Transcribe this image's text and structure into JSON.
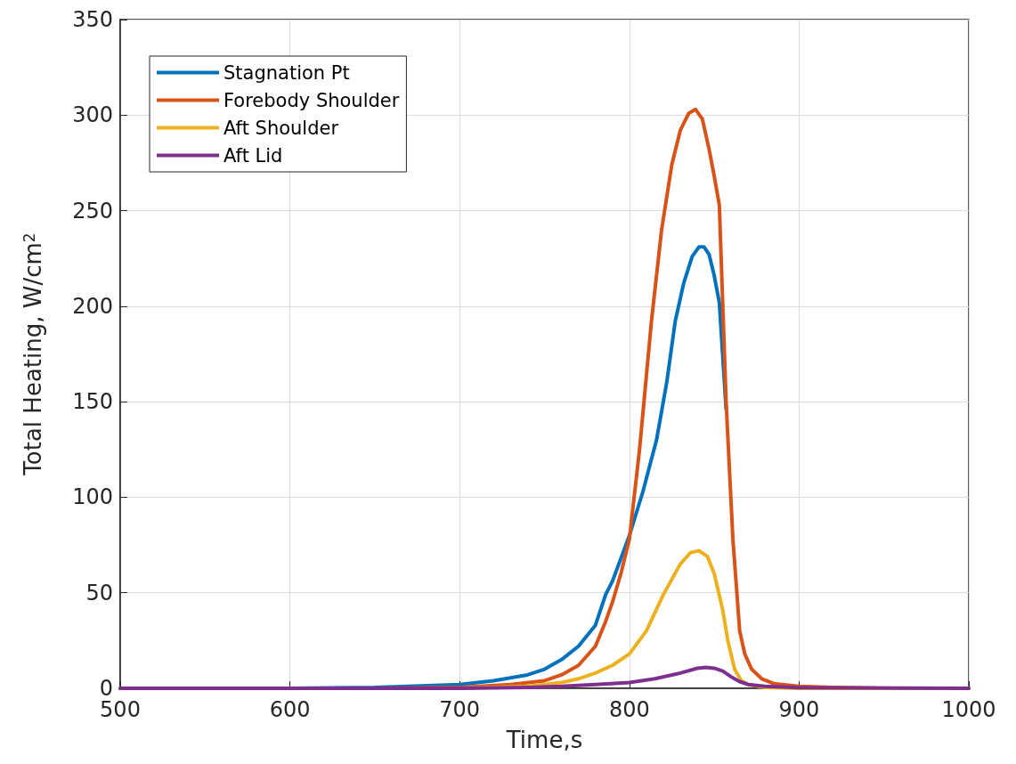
{
  "chart_data": {
    "type": "line",
    "xlabel": "Time,s",
    "ylabel": "Total Heating, W/cm$^{2}$",
    "xlim": [
      500,
      1000
    ],
    "xticks": [
      500,
      600,
      700,
      800,
      900,
      1000
    ],
    "ylim": [
      0,
      350
    ],
    "yticks": [
      0,
      50,
      100,
      150,
      200,
      250,
      300,
      350
    ],
    "grid": true,
    "legend": "top left",
    "line_style": "solid",
    "marker": "none",
    "series": [
      {
        "name": "Stagnation Pt",
        "color": "#0072bd",
        "x": [
          500,
          600,
          650,
          700,
          720,
          740,
          750,
          760,
          770,
          780,
          786,
          790,
          800,
          808,
          816,
          822,
          827,
          832,
          837,
          841,
          844,
          847,
          850,
          853,
          857
        ],
        "values": [
          0,
          0,
          0.5,
          2,
          4,
          7,
          10,
          15,
          22,
          33,
          49,
          56,
          80,
          103,
          130,
          160,
          192,
          212,
          226,
          231,
          231,
          227,
          216,
          202,
          146
        ]
      },
      {
        "name": "Forebody Shoulder",
        "color": "#d95319",
        "x": [
          500,
          650,
          700,
          730,
          750,
          760,
          770,
          780,
          786,
          790,
          795,
          800,
          806,
          813,
          819,
          825,
          830,
          835,
          839,
          843,
          847,
          850,
          853,
          857,
          861,
          865,
          868,
          872,
          878,
          885,
          890,
          900,
          920,
          950,
          1000
        ],
        "values": [
          0,
          0,
          0.5,
          2,
          4,
          7,
          12,
          22,
          35,
          45,
          60,
          78,
          125,
          192,
          240,
          274,
          292,
          301,
          303,
          298,
          282,
          268,
          253,
          150,
          78,
          30,
          18,
          10,
          5,
          2.5,
          2,
          1,
          0.5,
          0,
          0
        ]
      },
      {
        "name": "Aft Shoulder",
        "color": "#edb120",
        "x": [
          500,
          700,
          740,
          750,
          760,
          770,
          780,
          790,
          800,
          810,
          820,
          830,
          836,
          841,
          846,
          850,
          855,
          858,
          862,
          866,
          870,
          880,
          900,
          1000
        ],
        "values": [
          0,
          0,
          1,
          2,
          3,
          5,
          8,
          12,
          18,
          30,
          49,
          65,
          71,
          72,
          69,
          60,
          41,
          25,
          10,
          4,
          2,
          0.5,
          0,
          0
        ]
      },
      {
        "name": "Aft Lid",
        "color": "#7e2f8e",
        "x": [
          500,
          700,
          740,
          760,
          780,
          800,
          815,
          830,
          840,
          845,
          850,
          855,
          860,
          865,
          870,
          880,
          900,
          1000
        ],
        "values": [
          0,
          0,
          0.5,
          1,
          2,
          3,
          5,
          8,
          10.5,
          11,
          10.5,
          9,
          6,
          3.5,
          2,
          1,
          0.3,
          0
        ]
      }
    ]
  }
}
